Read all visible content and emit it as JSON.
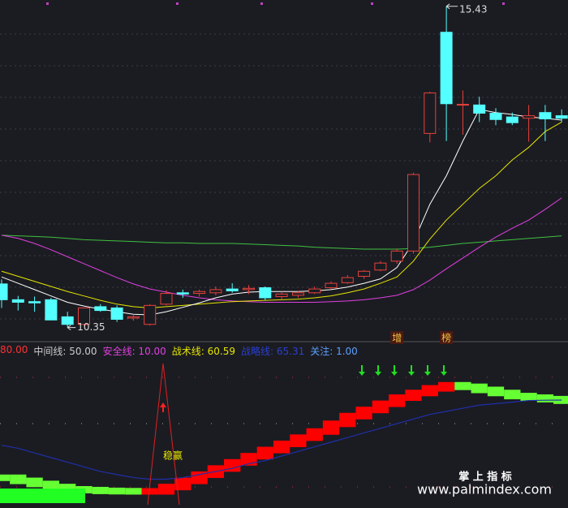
{
  "chart_data": [
    {
      "type": "candlestick",
      "ylim": [
        10.14,
        15.53
      ],
      "up_color": "#e8403a",
      "down_color": "#54ffff",
      "candles": [
        {
          "open": 11.04,
          "high": 11.11,
          "low": 10.66,
          "close": 10.79
        },
        {
          "open": 10.79,
          "high": 10.85,
          "low": 10.62,
          "close": 10.75
        },
        {
          "open": 10.76,
          "high": 10.84,
          "low": 10.6,
          "close": 10.74
        },
        {
          "open": 10.79,
          "high": 10.82,
          "low": 10.47,
          "close": 10.47
        },
        {
          "open": 10.52,
          "high": 10.6,
          "low": 10.35,
          "close": 10.4
        },
        {
          "open": 10.4,
          "high": 10.66,
          "low": 10.38,
          "close": 10.66
        },
        {
          "open": 10.68,
          "high": 10.72,
          "low": 10.6,
          "close": 10.62
        },
        {
          "open": 10.66,
          "high": 10.7,
          "low": 10.44,
          "close": 10.48
        },
        {
          "open": 10.5,
          "high": 10.56,
          "low": 10.46,
          "close": 10.52
        },
        {
          "open": 10.4,
          "high": 10.72,
          "low": 10.38,
          "close": 10.7
        },
        {
          "open": 10.72,
          "high": 10.94,
          "low": 10.7,
          "close": 10.89
        },
        {
          "open": 10.9,
          "high": 10.95,
          "low": 10.82,
          "close": 10.88
        },
        {
          "open": 10.89,
          "high": 10.95,
          "low": 10.84,
          "close": 10.92
        },
        {
          "open": 10.9,
          "high": 11.0,
          "low": 10.86,
          "close": 10.95
        },
        {
          "open": 10.96,
          "high": 11.05,
          "low": 10.9,
          "close": 10.93
        },
        {
          "open": 10.95,
          "high": 11.02,
          "low": 10.88,
          "close": 10.97
        },
        {
          "open": 10.98,
          "high": 11.0,
          "low": 10.78,
          "close": 10.82
        },
        {
          "open": 10.84,
          "high": 10.92,
          "low": 10.8,
          "close": 10.88
        },
        {
          "open": 10.86,
          "high": 10.93,
          "low": 10.82,
          "close": 10.9
        },
        {
          "open": 10.9,
          "high": 11.0,
          "low": 10.88,
          "close": 10.96
        },
        {
          "open": 10.98,
          "high": 11.08,
          "low": 10.96,
          "close": 11.05
        },
        {
          "open": 11.06,
          "high": 11.18,
          "low": 11.04,
          "close": 11.14
        },
        {
          "open": 11.16,
          "high": 11.26,
          "low": 11.12,
          "close": 11.24
        },
        {
          "open": 11.26,
          "high": 11.4,
          "low": 11.24,
          "close": 11.37
        },
        {
          "open": 11.4,
          "high": 11.6,
          "low": 11.36,
          "close": 11.56
        },
        {
          "open": 11.56,
          "high": 12.8,
          "low": 11.52,
          "close": 12.77
        },
        {
          "open": 13.42,
          "high": 14.08,
          "low": 13.28,
          "close": 14.06
        },
        {
          "open": 15.02,
          "high": 15.43,
          "low": 13.3,
          "close": 13.89
        },
        {
          "open": 13.87,
          "high": 14.1,
          "low": 13.4,
          "close": 13.88
        },
        {
          "open": 13.87,
          "high": 14.0,
          "low": 13.6,
          "close": 13.74
        },
        {
          "open": 13.74,
          "high": 13.82,
          "low": 13.55,
          "close": 13.64
        },
        {
          "open": 13.68,
          "high": 13.75,
          "low": 13.55,
          "close": 13.59
        },
        {
          "open": 13.66,
          "high": 13.87,
          "low": 13.29,
          "close": 13.7
        },
        {
          "open": 13.75,
          "high": 13.87,
          "low": 13.3,
          "close": 13.65
        },
        {
          "open": 13.7,
          "high": 13.8,
          "low": 13.6,
          "close": 13.66
        }
      ],
      "series": [
        {
          "color": "#40c040",
          "values": [
            11.81,
            11.8,
            11.79,
            11.78,
            11.76,
            11.74,
            11.73,
            11.72,
            11.71,
            11.7,
            11.69,
            11.69,
            11.68,
            11.68,
            11.68,
            11.67,
            11.66,
            11.65,
            11.64,
            11.62,
            11.61,
            11.6,
            11.59,
            11.59,
            11.59,
            11.6,
            11.62,
            11.65,
            11.68,
            11.7,
            11.72,
            11.74,
            11.76,
            11.78,
            11.8
          ]
        },
        {
          "color": "#e040e0",
          "values": [
            11.81,
            11.76,
            11.68,
            11.58,
            11.47,
            11.36,
            11.25,
            11.14,
            11.04,
            10.96,
            10.91,
            10.86,
            10.82,
            10.79,
            10.77,
            10.76,
            10.75,
            10.75,
            10.75,
            10.75,
            10.76,
            10.77,
            10.79,
            10.82,
            10.86,
            10.95,
            11.1,
            11.28,
            11.45,
            11.62,
            11.78,
            11.92,
            12.05,
            12.22,
            12.4
          ]
        },
        {
          "color": "#e6e600",
          "values": [
            11.24,
            11.16,
            11.08,
            11.0,
            10.92,
            10.85,
            10.78,
            10.72,
            10.68,
            10.66,
            10.68,
            10.7,
            10.72,
            10.74,
            10.76,
            10.77,
            10.78,
            10.79,
            10.8,
            10.82,
            10.85,
            10.9,
            10.96,
            11.05,
            11.15,
            11.4,
            11.75,
            12.05,
            12.3,
            12.55,
            12.75,
            13.0,
            13.2,
            13.45,
            13.6
          ]
        },
        {
          "color": "#ffffff",
          "values": [
            11.15,
            11.05,
            10.95,
            10.85,
            10.75,
            10.69,
            10.64,
            10.6,
            10.56,
            10.55,
            10.6,
            10.67,
            10.74,
            10.82,
            10.88,
            10.91,
            10.92,
            10.92,
            10.92,
            10.93,
            10.95,
            10.99,
            11.05,
            11.12,
            11.3,
            11.7,
            12.3,
            12.75,
            13.3,
            13.8,
            13.75,
            13.72,
            13.68,
            13.66,
            13.63
          ]
        }
      ],
      "signals": [
        "增",
        "榜"
      ]
    },
    {
      "type": "step",
      "ylim": [
        -2.6,
        93.2
      ],
      "legend": [
        {
          "text": "80.00",
          "color": "#ff3030"
        },
        {
          "text": "中间线: 50.00",
          "color": "#cccccc"
        },
        {
          "text": "安全线: 10.00",
          "color": "#e040e0"
        },
        {
          "text": "战术线: 60.59",
          "color": "#e6e600"
        },
        {
          "text": "战略线: 65.31",
          "color": "#2a3fd0"
        },
        {
          "text": "关注: 1.00",
          "color": "#5aa0ff"
        }
      ],
      "band": {
        "up_color": "#ff0000",
        "down_color": "#66ff33",
        "values": [
          17,
          15,
          13,
          11,
          9.5,
          9,
          8.5,
          8.3,
          8.2,
          8.2,
          11,
          15,
          19,
          23,
          27,
          31,
          35,
          39,
          43,
          47,
          52,
          57,
          61,
          65,
          69,
          72,
          75,
          77,
          76,
          74,
          72,
          70,
          69,
          68,
          67
        ]
      },
      "line": {
        "color": "#1f2fa8",
        "values": [
          36,
          34,
          31,
          28,
          25,
          22,
          19,
          17,
          15,
          14,
          14,
          15,
          17,
          19,
          21,
          24,
          26,
          29,
          32,
          35,
          38,
          41,
          44,
          47,
          50,
          53,
          56,
          58,
          60,
          62,
          63,
          64,
          65,
          65.2,
          65.31
        ]
      },
      "label": "稳赢"
    }
  ],
  "watermark": {
    "title": "掌 上 指 标",
    "url": "www.palmindex.com"
  }
}
